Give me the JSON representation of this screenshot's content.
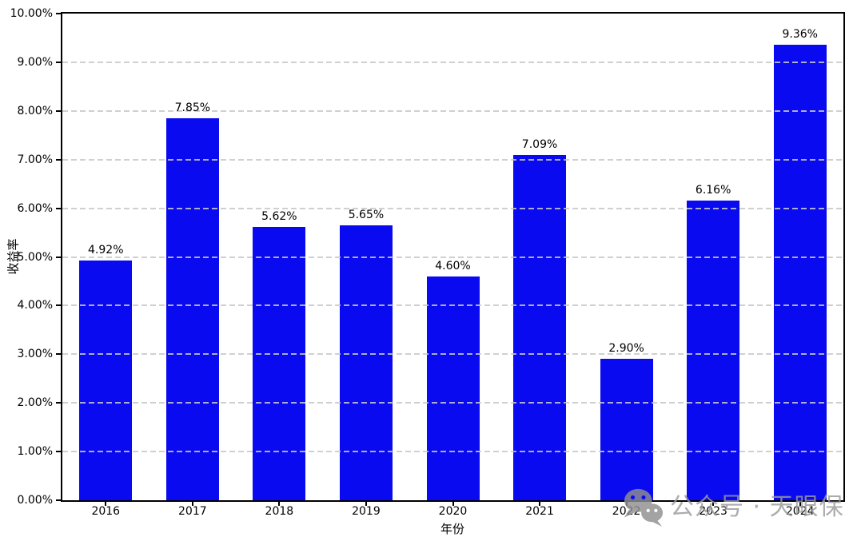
{
  "chart_data": {
    "type": "bar",
    "categories": [
      "2016",
      "2017",
      "2018",
      "2019",
      "2020",
      "2021",
      "2022",
      "2023",
      "2024"
    ],
    "values": [
      4.92,
      7.85,
      5.62,
      5.65,
      4.6,
      7.09,
      2.9,
      6.16,
      9.36
    ],
    "value_labels": [
      "4.92%",
      "7.85%",
      "5.62%",
      "5.65%",
      "4.60%",
      "7.09%",
      "2.90%",
      "6.16%",
      "9.36%"
    ],
    "xlabel": "年份",
    "ylabel": "收益率",
    "ylim": [
      0,
      10
    ],
    "y_tick_values": [
      0,
      1,
      2,
      3,
      4,
      5,
      6,
      7,
      8,
      9,
      10
    ],
    "y_tick_labels": [
      "0.00%",
      "1.00%",
      "2.00%",
      "3.00%",
      "4.00%",
      "5.00%",
      "6.00%",
      "7.00%",
      "8.00%",
      "9.00%",
      "10.00%"
    ],
    "grid_values": [
      1,
      2,
      3,
      4,
      5,
      6,
      7,
      8,
      9
    ],
    "grid": "horizontal-dashed-above-bars",
    "legend": "none",
    "bar_color": "#0a0af0",
    "grid_color": "#c8c8c8",
    "axis_color": "#000000"
  },
  "watermark": {
    "icon": "wechat-icon",
    "text": "公众号 · 天眼保",
    "color": "#9a9a9a"
  }
}
